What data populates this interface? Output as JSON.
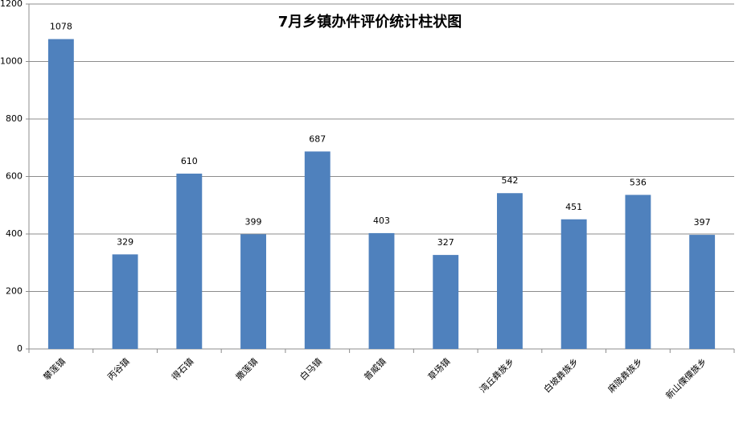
{
  "chart_data": {
    "type": "bar",
    "title": "7月乡镇办件评价统计柱状图",
    "categories": [
      "攀莲镇",
      "丙谷镇",
      "得石镇",
      "撒莲镇",
      "白马镇",
      "普威镇",
      "草场镇",
      "湾丘彝族乡",
      "白坡彝族乡",
      "麻陇彝族乡",
      "新山傈僳族乡"
    ],
    "values": [
      1078,
      329,
      610,
      399,
      687,
      403,
      327,
      542,
      451,
      536,
      397
    ],
    "color": "#4f81bd",
    "ylim": [
      0,
      1200
    ],
    "yticks": [
      0,
      200,
      400,
      600,
      800,
      1000,
      1200
    ],
    "grid": true
  }
}
